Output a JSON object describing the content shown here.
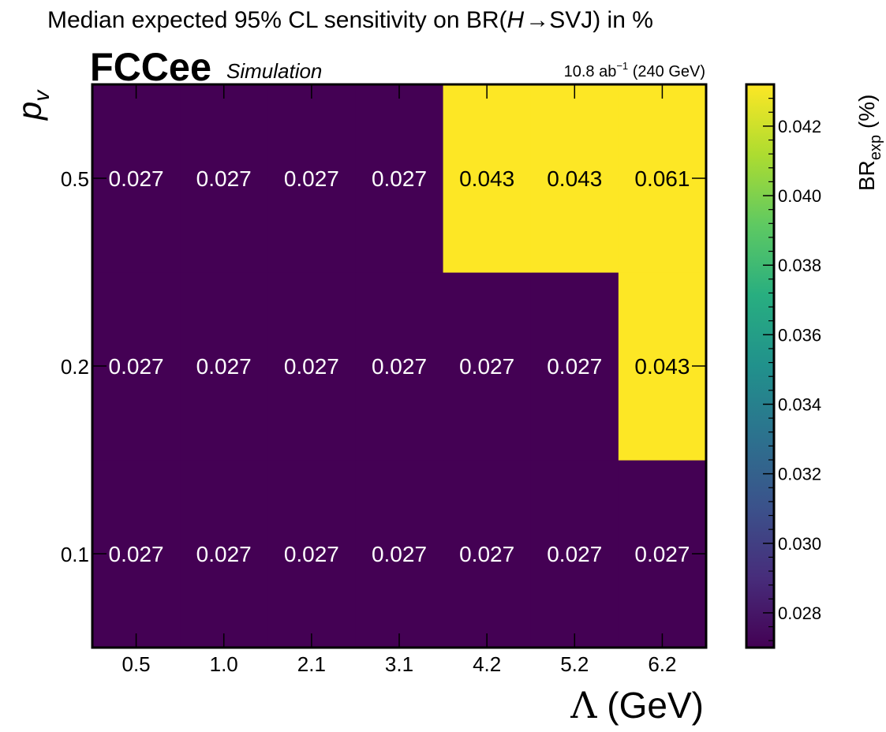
{
  "chart_data": {
    "type": "heatmap",
    "title": "Median expected 95% CL sensitivity on BR(",
    "title_math": "H",
    "title_arrow": "→",
    "title_tail": "SVJ) in %",
    "experiment": "FCCee",
    "experiment_tag": "Simulation",
    "lumi_value": "10.8 ab",
    "lumi_exponent": "−1",
    "lumi_energy": " (240 GeV)",
    "xlabel_symbol": "Λ",
    "xlabel_unit": " (GeV)",
    "ylabel_symbol": "p",
    "ylabel_subscript": "v",
    "x_categories": [
      "0.5",
      "1.0",
      "2.1",
      "3.1",
      "4.2",
      "5.2",
      "6.2"
    ],
    "y_categories": [
      "0.1",
      "0.2",
      "0.5"
    ],
    "values": [
      [
        0.027,
        0.027,
        0.027,
        0.027,
        0.027,
        0.027,
        0.027
      ],
      [
        0.027,
        0.027,
        0.027,
        0.027,
        0.027,
        0.027,
        0.043
      ],
      [
        0.027,
        0.027,
        0.027,
        0.027,
        0.043,
        0.043,
        0.061
      ]
    ],
    "cell_labels": [
      [
        "0.027",
        "0.027",
        "0.027",
        "0.027",
        "0.027",
        "0.027",
        "0.027"
      ],
      [
        "0.027",
        "0.027",
        "0.027",
        "0.027",
        "0.027",
        "0.027",
        "0.043"
      ],
      [
        "0.027",
        "0.027",
        "0.027",
        "0.027",
        "0.043",
        "0.043",
        "0.061"
      ]
    ],
    "colorbar": {
      "label_main": "BR",
      "label_sub": "exp",
      "label_unit": " (%)",
      "range": [
        0.027,
        0.0432
      ],
      "ticks": [
        "0.028",
        "0.030",
        "0.032",
        "0.034",
        "0.036",
        "0.038",
        "0.040",
        "0.042"
      ],
      "colormap": "viridis"
    },
    "colors": {
      "low": "#440154",
      "high": "#fde725",
      "label_on_dark": "#ffffff",
      "label_on_light": "#000000"
    }
  }
}
